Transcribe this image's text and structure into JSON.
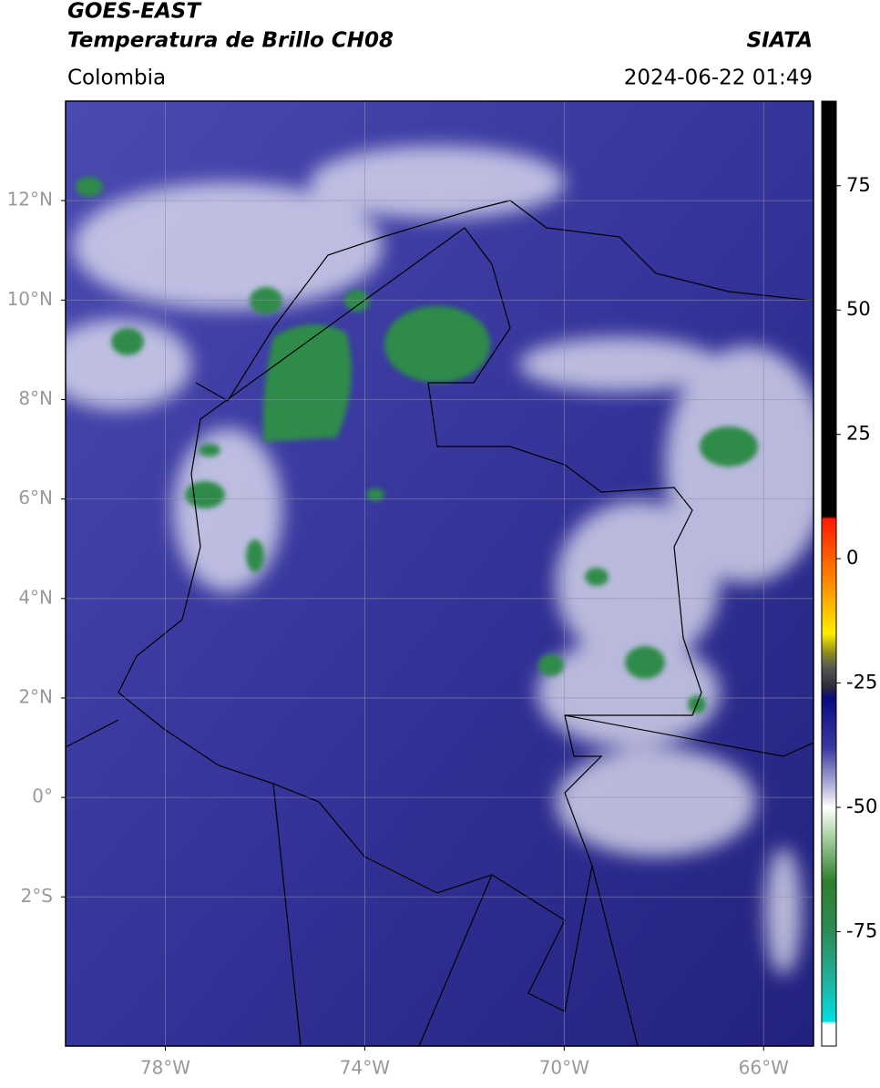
{
  "chart_data": {
    "type": "map",
    "title": "GOES-EAST",
    "subtitle": "Temperatura de Brillo CH08",
    "source": "SIATA",
    "region": "Colombia",
    "timestamp": "2024-06-22 01:49",
    "xlim": [
      -80,
      -65
    ],
    "ylim": [
      -5,
      14
    ],
    "xticks": [
      {
        "value": -78,
        "label": "78°W"
      },
      {
        "value": -74,
        "label": "74°W"
      },
      {
        "value": -70,
        "label": "70°W"
      },
      {
        "value": -66,
        "label": "66°W"
      }
    ],
    "yticks": [
      {
        "value": -2,
        "label": "2°S"
      },
      {
        "value": 0,
        "label": "0°"
      },
      {
        "value": 2,
        "label": "2°N"
      },
      {
        "value": 4,
        "label": "4°N"
      },
      {
        "value": 6,
        "label": "6°N"
      },
      {
        "value": 8,
        "label": "8°N"
      },
      {
        "value": 10,
        "label": "10°N"
      },
      {
        "value": 12,
        "label": "12°N"
      }
    ],
    "grid": true,
    "colorbar": {
      "clim": [
        -98,
        92
      ],
      "ticks": [
        75,
        50,
        25,
        0,
        -25,
        -50,
        -75
      ],
      "colorscale": [
        {
          "value": 92,
          "color": "#000000"
        },
        {
          "value": 8.5,
          "color": "#000000"
        },
        {
          "value": 8,
          "color": "#ff1a00"
        },
        {
          "value": -5,
          "color": "#ff8c00"
        },
        {
          "value": -15,
          "color": "#ffee00"
        },
        {
          "value": -19,
          "color": "#8a8a20"
        },
        {
          "value": -22,
          "color": "#555555"
        },
        {
          "value": -26,
          "color": "#2a2a3a"
        },
        {
          "value": -28,
          "color": "#0a0a80"
        },
        {
          "value": -38,
          "color": "#3a3aa0"
        },
        {
          "value": -46,
          "color": "#b8b8dc"
        },
        {
          "value": -50,
          "color": "#ffffff"
        },
        {
          "value": -56,
          "color": "#a8d0a0"
        },
        {
          "value": -65,
          "color": "#2e7d2e"
        },
        {
          "value": -75,
          "color": "#2e8b57"
        },
        {
          "value": -85,
          "color": "#20b2a0"
        },
        {
          "value": -93,
          "color": "#00e0e0"
        },
        {
          "value": -93.5,
          "color": "#ffffff"
        },
        {
          "value": -98,
          "color": "#ffffff"
        }
      ]
    }
  }
}
